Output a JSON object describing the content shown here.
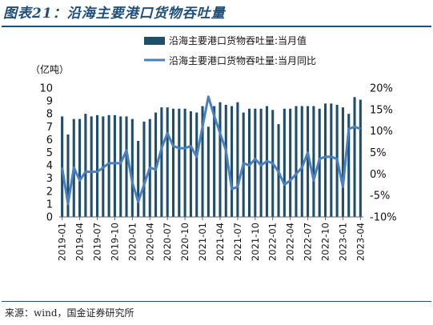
{
  "figure": {
    "title": "图表21：沿海主要港口货物吞吐量",
    "source": "来源：wind，国金证券研究所"
  },
  "chart_data": {
    "type": "bar",
    "x": [
      "2019-01",
      "2019-02",
      "2019-03",
      "2019-04",
      "2019-05",
      "2019-06",
      "2019-07",
      "2019-08",
      "2019-09",
      "2019-10",
      "2019-11",
      "2019-12",
      "2020-01",
      "2020-02",
      "2020-03",
      "2020-04",
      "2020-05",
      "2020-06",
      "2020-07",
      "2020-08",
      "2020-09",
      "2020-10",
      "2020-11",
      "2020-12",
      "2021-01",
      "2021-02",
      "2021-03",
      "2021-04",
      "2021-05",
      "2021-06",
      "2021-07",
      "2021-08",
      "2021-09",
      "2021-10",
      "2021-11",
      "2021-12",
      "2022-01",
      "2022-02",
      "2022-03",
      "2022-04",
      "2022-05",
      "2022-06",
      "2022-07",
      "2022-08",
      "2022-09",
      "2022-10",
      "2022-11",
      "2022-12",
      "2023-01",
      "2023-02",
      "2023-03",
      "2023-04"
    ],
    "x_tick_labels": [
      "2019-01",
      "2019-04",
      "2019-07",
      "2019-10",
      "2020-01",
      "2020-04",
      "2020-07",
      "2020-10",
      "2021-01",
      "2021-04",
      "2021-07",
      "2021-10",
      "2022-01",
      "2022-04",
      "2022-07",
      "2022-10",
      "2023-01",
      "2023-04"
    ],
    "left_axis_unit": "（亿吨）",
    "ylim": [
      0,
      10
    ],
    "yticks": [
      0,
      1,
      2,
      3,
      4,
      5,
      6,
      7,
      8,
      9,
      10
    ],
    "y2lim": [
      -10,
      20
    ],
    "y2ticks": [
      "-10%",
      "-5%",
      "0%",
      "5%",
      "10%",
      "15%",
      "20%"
    ],
    "legend_position": "top",
    "series": [
      {
        "name": "沿海主要港口货物吞吐量:当月值",
        "type": "bar",
        "axis": "left",
        "color": "#1d4e6b",
        "values": [
          7.8,
          6.4,
          7.6,
          7.6,
          8.0,
          7.8,
          7.9,
          7.8,
          7.9,
          7.9,
          7.8,
          7.8,
          7.6,
          5.9,
          7.4,
          7.6,
          8.1,
          8.5,
          8.5,
          8.4,
          8.4,
          8.4,
          8.2,
          8.1,
          8.6,
          7.0,
          8.6,
          8.9,
          8.7,
          8.6,
          8.9,
          8.1,
          8.4,
          8.4,
          8.4,
          8.6,
          8.3,
          7.2,
          8.4,
          8.4,
          8.6,
          8.6,
          8.6,
          8.6,
          8.4,
          8.8,
          8.8,
          8.7,
          8.5,
          8.0,
          9.3,
          9.1
        ]
      },
      {
        "name": "沿海主要港口货物吞吐量:当月同比",
        "type": "line",
        "axis": "right",
        "color": "#4a7fc1",
        "values": [
          1.5,
          -7.0,
          1.5,
          -1.5,
          0.5,
          0.5,
          0.5,
          1.5,
          2.5,
          2.5,
          2.5,
          5.5,
          -2.0,
          -6.5,
          -2.5,
          1.5,
          1.0,
          6.0,
          9.5,
          6.5,
          6.0,
          6.0,
          6.5,
          4.0,
          11.0,
          18.0,
          13.5,
          9.5,
          5.5,
          -3.5,
          -3.0,
          2.5,
          2.0,
          3.5,
          2.0,
          3.0,
          2.5,
          0.5,
          -2.5,
          -1.5,
          0.0,
          1.5,
          5.0,
          -1.5,
          3.5,
          4.0,
          4.0,
          3.5,
          -3.0,
          10.5,
          11.0,
          10.5
        ]
      }
    ]
  }
}
